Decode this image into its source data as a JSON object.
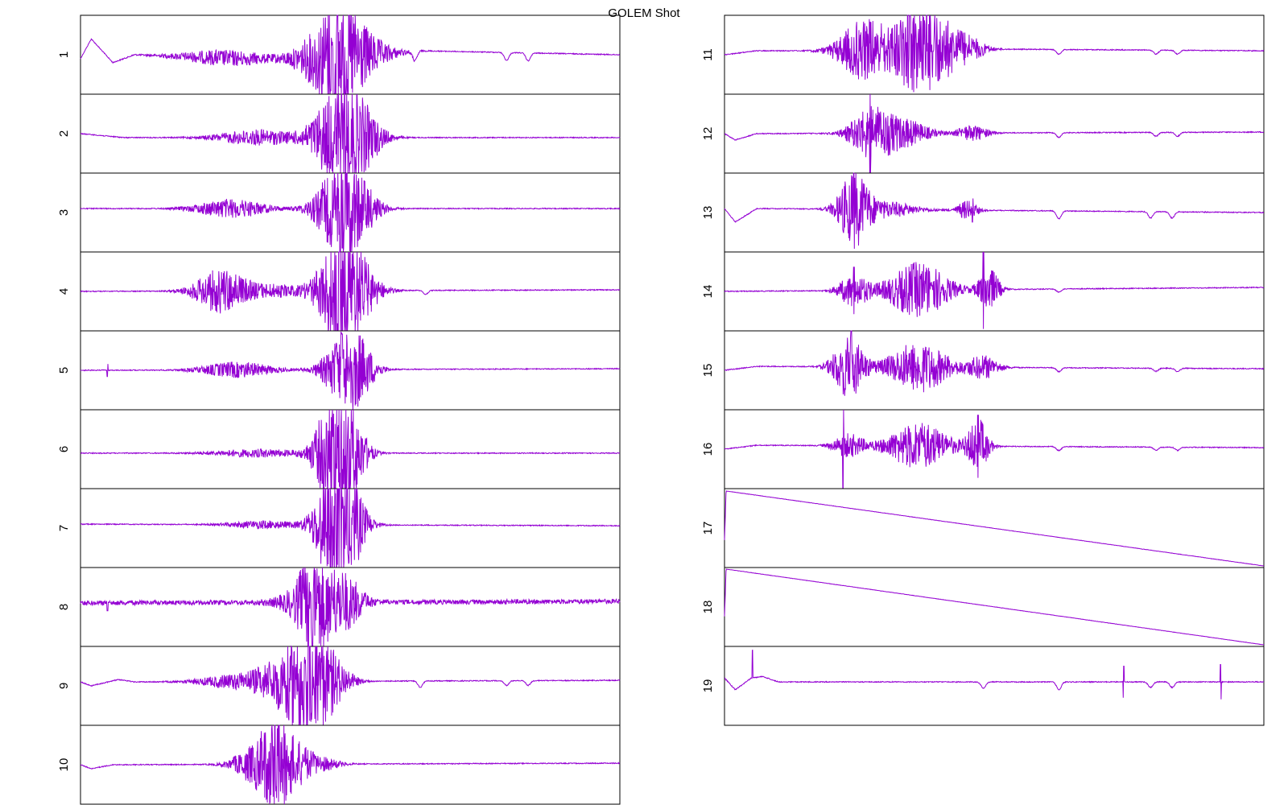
{
  "title": "GOLEM Shot",
  "colors": {
    "trace": "#9400d3",
    "frame": "#000000",
    "background": "#ffffff"
  },
  "chart_data": {
    "type": "line",
    "title": "GOLEM Shot",
    "layout": "two columns of stacked strip panels, left 1-10, right 11-19",
    "grid": false,
    "x_axis_ticks": false,
    "y_axis_ticks": false,
    "time_range_fraction": [
      0,
      1
    ],
    "panels": [
      {
        "label": "1",
        "column": "left",
        "kind": "oscillation",
        "baseline_drift": [
          [
            0,
            0.55
          ],
          [
            0.02,
            0.3
          ],
          [
            0.06,
            0.6
          ],
          [
            0.1,
            0.5
          ],
          [
            0.3,
            0.55
          ],
          [
            0.47,
            0.55
          ],
          [
            0.63,
            0.45
          ],
          [
            1,
            0.5
          ]
        ],
        "bursts": [
          [
            0.27,
            0.09,
            0.1
          ],
          [
            0.44,
            0.05,
            0.22
          ],
          [
            0.48,
            0.04,
            0.45
          ],
          [
            0.51,
            0.06,
            0.3
          ]
        ],
        "dips": [
          [
            0.62,
            0.12
          ],
          [
            0.79,
            0.1
          ],
          [
            0.83,
            0.1
          ]
        ],
        "spikes": [
          [
            0.47,
            0.55
          ]
        ]
      },
      {
        "label": "2",
        "column": "left",
        "kind": "oscillation",
        "baseline_drift": [
          [
            0,
            0.5
          ],
          [
            0.08,
            0.55
          ],
          [
            1,
            0.55
          ]
        ],
        "bursts": [
          [
            0.33,
            0.08,
            0.1
          ],
          [
            0.46,
            0.04,
            0.2
          ],
          [
            0.49,
            0.05,
            0.45
          ],
          [
            0.52,
            0.04,
            0.2
          ]
        ],
        "dips": [],
        "spikes": [
          [
            0.49,
            0.55
          ]
        ]
      },
      {
        "label": "3",
        "column": "left",
        "kind": "oscillation",
        "baseline_drift": [
          [
            0,
            0.45
          ],
          [
            1,
            0.45
          ]
        ],
        "bursts": [
          [
            0.28,
            0.07,
            0.12
          ],
          [
            0.46,
            0.04,
            0.18
          ],
          [
            0.49,
            0.04,
            0.45
          ],
          [
            0.52,
            0.04,
            0.18
          ]
        ],
        "dips": [],
        "spikes": [
          [
            0.485,
            0.5
          ]
        ]
      },
      {
        "label": "4",
        "column": "left",
        "kind": "oscillation",
        "baseline_drift": [
          [
            0,
            0.5
          ],
          [
            1,
            0.48
          ]
        ],
        "bursts": [
          [
            0.26,
            0.05,
            0.28
          ],
          [
            0.36,
            0.06,
            0.08
          ],
          [
            0.47,
            0.04,
            0.3
          ],
          [
            0.49,
            0.04,
            0.45
          ],
          [
            0.52,
            0.04,
            0.2
          ]
        ],
        "dips": [
          [
            0.64,
            0.05
          ]
        ],
        "spikes": [
          [
            0.48,
            0.5
          ]
        ]
      },
      {
        "label": "5",
        "column": "left",
        "kind": "oscillation",
        "baseline_drift": [
          [
            0,
            0.5
          ],
          [
            1,
            0.48
          ]
        ],
        "bursts": [
          [
            0.29,
            0.07,
            0.1
          ],
          [
            0.49,
            0.04,
            0.45
          ],
          [
            0.52,
            0.03,
            0.18
          ]
        ],
        "dips": [],
        "spikes": [
          [
            0.05,
            0.08
          ],
          [
            0.485,
            0.45
          ]
        ]
      },
      {
        "label": "6",
        "column": "left",
        "kind": "oscillation",
        "baseline_drift": [
          [
            0,
            0.55
          ],
          [
            1,
            0.55
          ]
        ],
        "bursts": [
          [
            0.33,
            0.09,
            0.05
          ],
          [
            0.46,
            0.03,
            0.3
          ],
          [
            0.48,
            0.04,
            0.45
          ],
          [
            0.5,
            0.03,
            0.3
          ]
        ],
        "dips": [],
        "spikes": [
          [
            0.47,
            0.5
          ]
        ]
      },
      {
        "label": "7",
        "column": "left",
        "kind": "oscillation",
        "baseline_drift": [
          [
            0,
            0.45
          ],
          [
            1,
            0.47
          ]
        ],
        "bursts": [
          [
            0.34,
            0.07,
            0.05
          ],
          [
            0.46,
            0.03,
            0.35
          ],
          [
            0.48,
            0.04,
            0.45
          ],
          [
            0.5,
            0.03,
            0.3
          ]
        ],
        "dips": [],
        "spikes": [
          [
            0.46,
            0.5
          ]
        ]
      },
      {
        "label": "8",
        "column": "left",
        "kind": "noisy",
        "baseline_drift": [
          [
            0,
            0.45
          ],
          [
            1,
            0.43
          ]
        ],
        "bursts": [
          [
            0.4,
            0.04,
            0.1
          ],
          [
            0.43,
            0.03,
            0.45
          ],
          [
            0.47,
            0.04,
            0.3
          ],
          [
            0.5,
            0.03,
            0.15
          ]
        ],
        "dips": [],
        "spikes": [
          [
            0.43,
            0.55
          ],
          [
            0.05,
            0.1
          ]
        ]
      },
      {
        "label": "9",
        "column": "left",
        "kind": "oscillation",
        "baseline_drift": [
          [
            0,
            0.45
          ],
          [
            0.02,
            0.5
          ],
          [
            0.07,
            0.42
          ],
          [
            0.1,
            0.45
          ],
          [
            1,
            0.43
          ]
        ],
        "bursts": [
          [
            0.3,
            0.08,
            0.1
          ],
          [
            0.38,
            0.05,
            0.25
          ],
          [
            0.42,
            0.04,
            0.45
          ],
          [
            0.46,
            0.04,
            0.3
          ]
        ],
        "dips": [
          [
            0.63,
            0.08
          ],
          [
            0.79,
            0.06
          ],
          [
            0.83,
            0.06
          ]
        ],
        "spikes": [
          [
            0.425,
            0.5
          ]
        ]
      },
      {
        "label": "10",
        "column": "left",
        "kind": "oscillation",
        "baseline_drift": [
          [
            0,
            0.5
          ],
          [
            0.02,
            0.55
          ],
          [
            0.06,
            0.5
          ],
          [
            1,
            0.48
          ]
        ],
        "bursts": [
          [
            0.32,
            0.04,
            0.2
          ],
          [
            0.36,
            0.03,
            0.45
          ],
          [
            0.4,
            0.04,
            0.25
          ],
          [
            0.46,
            0.03,
            0.05
          ]
        ],
        "dips": [],
        "spikes": [
          [
            0.36,
            0.5
          ]
        ]
      },
      {
        "label": "11",
        "column": "right",
        "kind": "oscillation",
        "baseline_drift": [
          [
            0,
            0.5
          ],
          [
            0.06,
            0.45
          ],
          [
            0.2,
            0.45
          ],
          [
            0.3,
            0.42
          ],
          [
            1,
            0.45
          ]
        ],
        "bursts": [
          [
            0.26,
            0.05,
            0.4
          ],
          [
            0.35,
            0.04,
            0.45
          ],
          [
            0.4,
            0.05,
            0.35
          ],
          [
            0.46,
            0.03,
            0.08
          ]
        ],
        "dips": [
          [
            0.62,
            0.06
          ],
          [
            0.8,
            0.05
          ],
          [
            0.84,
            0.05
          ]
        ],
        "spikes": [
          [
            0.34,
            0.5
          ]
        ]
      },
      {
        "label": "12",
        "column": "right",
        "kind": "oscillation",
        "baseline_drift": [
          [
            0,
            0.5
          ],
          [
            0.02,
            0.58
          ],
          [
            0.06,
            0.5
          ],
          [
            1,
            0.48
          ]
        ],
        "bursts": [
          [
            0.27,
            0.04,
            0.3
          ],
          [
            0.33,
            0.05,
            0.18
          ],
          [
            0.46,
            0.03,
            0.1
          ]
        ],
        "dips": [
          [
            0.62,
            0.06
          ],
          [
            0.8,
            0.05
          ],
          [
            0.84,
            0.05
          ]
        ],
        "spikes": [
          [
            0.27,
            0.5
          ]
        ]
      },
      {
        "label": "13",
        "column": "right",
        "kind": "oscillation",
        "baseline_drift": [
          [
            0,
            0.45
          ],
          [
            0.02,
            0.62
          ],
          [
            0.06,
            0.45
          ],
          [
            1,
            0.5
          ]
        ],
        "bursts": [
          [
            0.24,
            0.03,
            0.45
          ],
          [
            0.3,
            0.06,
            0.1
          ],
          [
            0.45,
            0.02,
            0.12
          ]
        ],
        "dips": [
          [
            0.62,
            0.1
          ],
          [
            0.79,
            0.08
          ],
          [
            0.83,
            0.08
          ]
        ],
        "spikes": [
          [
            0.24,
            0.5
          ],
          [
            0.46,
            0.15
          ]
        ]
      },
      {
        "label": "14",
        "column": "right",
        "kind": "oscillation",
        "baseline_drift": [
          [
            0,
            0.5
          ],
          [
            1,
            0.45
          ]
        ],
        "bursts": [
          [
            0.24,
            0.03,
            0.2
          ],
          [
            0.36,
            0.06,
            0.35
          ],
          [
            0.49,
            0.02,
            0.28
          ]
        ],
        "dips": [
          [
            0.62,
            0.04
          ]
        ],
        "spikes": [
          [
            0.24,
            0.3
          ],
          [
            0.48,
            0.5
          ]
        ]
      },
      {
        "label": "15",
        "column": "right",
        "kind": "oscillation",
        "baseline_drift": [
          [
            0,
            0.5
          ],
          [
            0.06,
            0.45
          ],
          [
            1,
            0.48
          ]
        ],
        "bursts": [
          [
            0.23,
            0.03,
            0.4
          ],
          [
            0.36,
            0.06,
            0.32
          ],
          [
            0.48,
            0.03,
            0.15
          ]
        ],
        "dips": [
          [
            0.62,
            0.05
          ],
          [
            0.8,
            0.04
          ],
          [
            0.84,
            0.04
          ]
        ],
        "spikes": [
          [
            0.235,
            0.5
          ]
        ]
      },
      {
        "label": "16",
        "column": "right",
        "kind": "oscillation",
        "baseline_drift": [
          [
            0,
            0.5
          ],
          [
            0.06,
            0.45
          ],
          [
            1,
            0.48
          ]
        ],
        "bursts": [
          [
            0.23,
            0.03,
            0.15
          ],
          [
            0.36,
            0.06,
            0.3
          ],
          [
            0.47,
            0.02,
            0.35
          ]
        ],
        "dips": [
          [
            0.62,
            0.05
          ],
          [
            0.8,
            0.04
          ],
          [
            0.84,
            0.04
          ]
        ],
        "spikes": [
          [
            0.22,
            0.55
          ],
          [
            0.47,
            0.4
          ]
        ]
      },
      {
        "label": "17",
        "column": "right",
        "kind": "ramp",
        "ramp": {
          "start_from": 0.65,
          "peak_at": 0.003,
          "peak": 0.03,
          "end": 0.98
        }
      },
      {
        "label": "18",
        "column": "right",
        "kind": "ramp",
        "ramp": {
          "start_from": 0.62,
          "peak_at": 0.003,
          "peak": 0.02,
          "end": 0.98
        }
      },
      {
        "label": "19",
        "column": "right",
        "kind": "oscillation",
        "baseline_drift": [
          [
            0,
            0.4
          ],
          [
            0.02,
            0.55
          ],
          [
            0.05,
            0.4
          ],
          [
            0.07,
            0.38
          ],
          [
            0.1,
            0.45
          ],
          [
            1,
            0.45
          ]
        ],
        "bursts": [],
        "dips": [
          [
            0.48,
            0.08
          ],
          [
            0.62,
            0.1
          ],
          [
            0.79,
            0.07
          ],
          [
            0.83,
            0.07
          ]
        ],
        "spikes": [
          [
            0.052,
            0.35
          ],
          [
            0.74,
            0.2
          ],
          [
            0.92,
            0.22
          ]
        ]
      }
    ]
  }
}
